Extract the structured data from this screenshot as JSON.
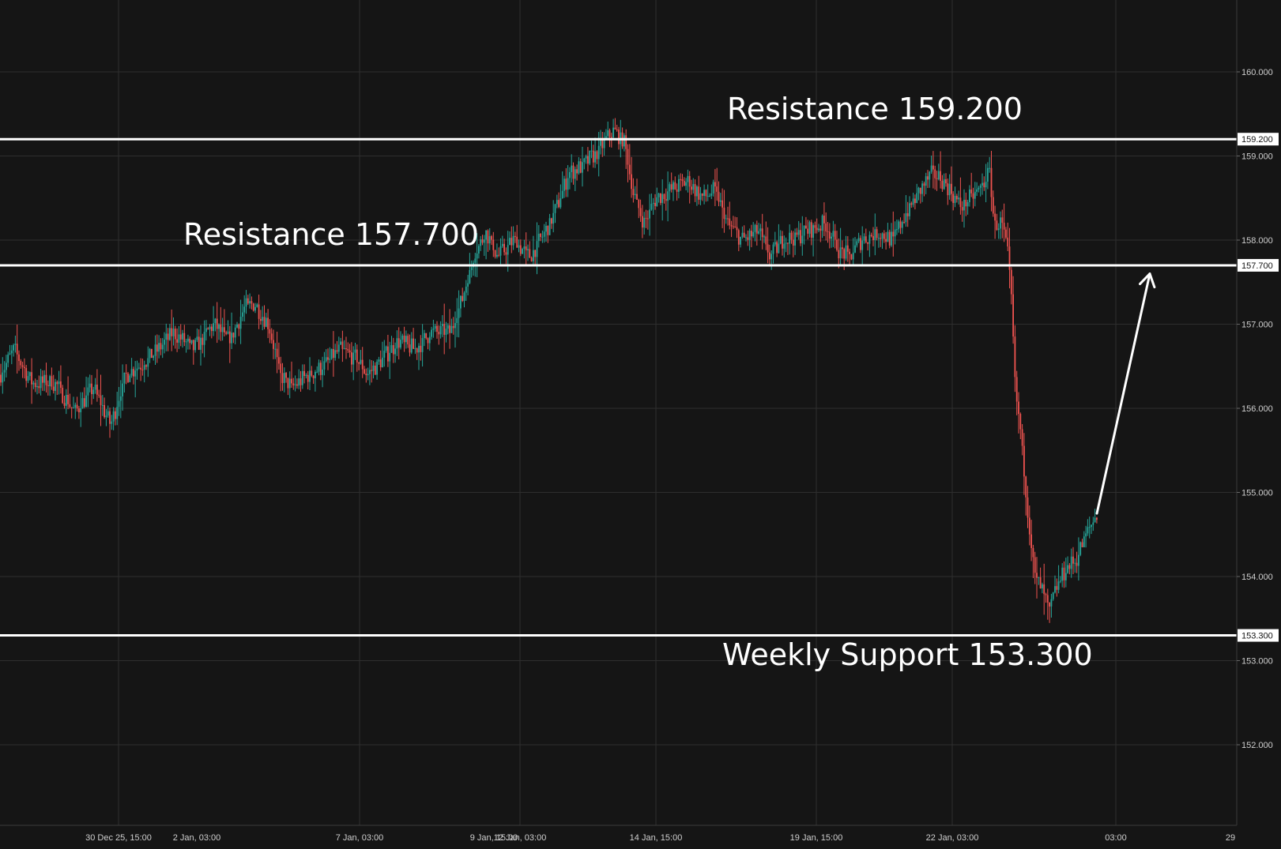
{
  "chart_data": {
    "type": "candlestick",
    "colors": {
      "background": "#151515",
      "grid": "#2e2e2e",
      "up": "#26a69a",
      "down": "#ef5350",
      "level": "#ffffff",
      "text": "#cfcfcf"
    },
    "ylim": [
      151.0,
      160.8
    ],
    "y_ticks": [
      "160.000",
      "159.000",
      "158.000",
      "157.000",
      "156.000",
      "155.000",
      "154.000",
      "153.000",
      "152.000"
    ],
    "x_ticks": [
      "30 Dec 25, 15:00",
      "2 Jan, 03:00",
      "7 Jan, 03:00",
      "9 Jan, 15:00",
      "12 Jan, 03:00",
      "14 Jan, 15:00",
      "19 Jan, 15:00",
      "22 Jan, 03:00",
      "03:00",
      "29"
    ],
    "levels": [
      {
        "value": 159.2,
        "label": "159.200",
        "annotation": "Resistance 159.200"
      },
      {
        "value": 157.7,
        "label": "157.700",
        "annotation": "Resistance 157.700"
      },
      {
        "value": 153.3,
        "label": "153.300",
        "annotation": "Weekly Support 153.300"
      }
    ],
    "price_path": [
      [
        0,
        156.4
      ],
      [
        18,
        156.7
      ],
      [
        40,
        156.3
      ],
      [
        70,
        156.3
      ],
      [
        95,
        155.95
      ],
      [
        118,
        156.25
      ],
      [
        140,
        155.8
      ],
      [
        160,
        156.4
      ],
      [
        190,
        156.6
      ],
      [
        220,
        156.9
      ],
      [
        245,
        156.7
      ],
      [
        270,
        157.0
      ],
      [
        290,
        156.8
      ],
      [
        310,
        157.2
      ],
      [
        322,
        157.25
      ],
      [
        340,
        157.0
      ],
      [
        355,
        156.4
      ],
      [
        370,
        156.25
      ],
      [
        390,
        156.4
      ],
      [
        410,
        156.5
      ],
      [
        430,
        156.7
      ],
      [
        450,
        156.6
      ],
      [
        465,
        156.4
      ],
      [
        485,
        156.6
      ],
      [
        505,
        156.8
      ],
      [
        525,
        156.7
      ],
      [
        545,
        156.9
      ],
      [
        570,
        156.9
      ],
      [
        585,
        157.3
      ],
      [
        600,
        157.8
      ],
      [
        615,
        158.1
      ],
      [
        630,
        157.8
      ],
      [
        650,
        158.0
      ],
      [
        670,
        157.8
      ],
      [
        690,
        158.1
      ],
      [
        705,
        158.4
      ],
      [
        720,
        158.8
      ],
      [
        740,
        158.9
      ],
      [
        760,
        159.1
      ],
      [
        775,
        159.3
      ],
      [
        790,
        159.2
      ],
      [
        800,
        158.6
      ],
      [
        815,
        158.2
      ],
      [
        830,
        158.5
      ],
      [
        850,
        158.6
      ],
      [
        870,
        158.7
      ],
      [
        890,
        158.5
      ],
      [
        905,
        158.6
      ],
      [
        920,
        158.2
      ],
      [
        940,
        158.0
      ],
      [
        960,
        158.1
      ],
      [
        975,
        157.8
      ],
      [
        990,
        158.0
      ],
      [
        1010,
        158.05
      ],
      [
        1030,
        158.15
      ],
      [
        1045,
        158.2
      ],
      [
        1060,
        157.9
      ],
      [
        1075,
        157.8
      ],
      [
        1090,
        158.0
      ],
      [
        1110,
        158.1
      ],
      [
        1130,
        158.0
      ],
      [
        1145,
        158.3
      ],
      [
        1165,
        158.6
      ],
      [
        1180,
        158.8
      ],
      [
        1195,
        158.7
      ],
      [
        1215,
        158.4
      ],
      [
        1240,
        158.6
      ],
      [
        1252,
        158.8
      ],
      [
        1258,
        158.2
      ],
      [
        1268,
        158.2
      ],
      [
        1275,
        157.9
      ],
      [
        1280,
        157.3
      ],
      [
        1285,
        156.2
      ],
      [
        1292,
        155.7
      ],
      [
        1297,
        155.1
      ],
      [
        1302,
        154.6
      ],
      [
        1310,
        154.0
      ],
      [
        1320,
        153.8
      ],
      [
        1328,
        153.6
      ],
      [
        1338,
        153.9
      ],
      [
        1350,
        154.1
      ],
      [
        1362,
        154.2
      ],
      [
        1372,
        154.45
      ],
      [
        1380,
        154.6
      ],
      [
        1388,
        154.75
      ]
    ],
    "arrow": {
      "from": [
        1388,
        154.75
      ],
      "to": [
        1455,
        157.6
      ]
    }
  }
}
